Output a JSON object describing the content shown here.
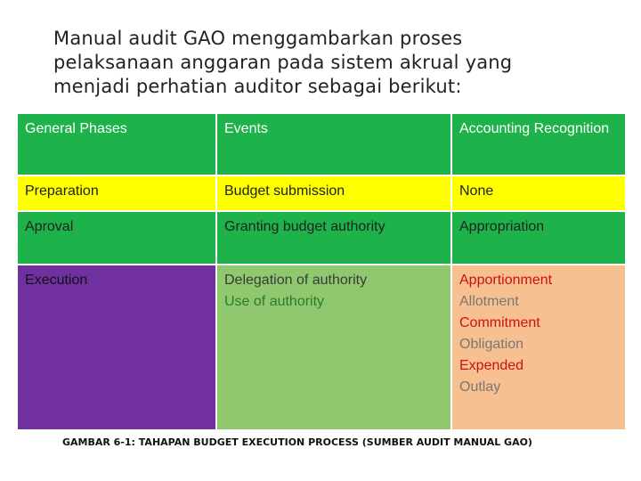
{
  "title_lines": [
    "Manual audit GAO menggambarkan proses",
    "pelaksanaan anggaran pada sistem akrual yang",
    "menjadi perhatian auditor sebagai berikut:"
  ],
  "table": {
    "headers": [
      "General Phases",
      "Events",
      "Accounting Recognition"
    ],
    "rows": [
      {
        "phase": "Preparation",
        "events": [
          "Budget submission"
        ],
        "recognition": [
          "None"
        ]
      },
      {
        "phase": "Aproval",
        "events": [
          "Granting budget authority"
        ],
        "recognition": [
          "Appropriation"
        ]
      },
      {
        "phase": "Execution",
        "events": [
          "Delegation of authority",
          "Use of authority"
        ],
        "recognition": [
          "Apportionment",
          "Allotment",
          "Commitment",
          "Obligation",
          "Expended",
          "Outlay"
        ]
      }
    ]
  },
  "caption": "GAMBAR 6-1: TAHAPAN BUDGET EXECUTION PROCESS (SUMBER AUDIT MANUAL GAO)",
  "colors": {
    "header_green": "#1db24a",
    "preparation_yellow": "#ffff00",
    "execution_purple": "#7030a0",
    "events_light_green": "#8fc86e",
    "recognition_peach": "#f7c090"
  }
}
